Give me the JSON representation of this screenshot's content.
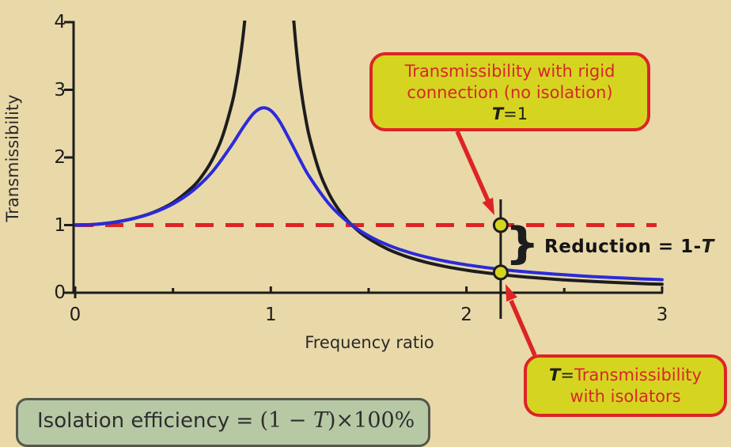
{
  "colors": {
    "background": "#e9d9a9",
    "curve_rigid": "#1d1d1d",
    "curve_isolated": "#2b2bd9",
    "reference_line": "#dd2424",
    "callout_fill": "#d5d521",
    "callout_border": "#dd2424",
    "callout_text": "#d8262a",
    "dot_fill": "#d5d521",
    "efficiency_fill": "#b7c8a5",
    "axis": "#1d1d1d"
  },
  "chart_data": {
    "type": "line",
    "xlabel": "Frequency ratio",
    "ylabel": "Transmissibility",
    "xlim": [
      0,
      3
    ],
    "ylim": [
      0,
      4
    ],
    "x_ticks": [
      0,
      1,
      2,
      3
    ],
    "x_minor_ticks": [
      0.5,
      1.5,
      2.5
    ],
    "y_ticks": [
      0,
      1,
      2,
      3,
      4
    ],
    "grid": false,
    "legend": "none (labeled via callouts)",
    "series": [
      {
        "name": "transmissibility-rigid-connection-undamped",
        "color": "#1d1d1d",
        "segments": [
          [
            [
              0,
              1
            ],
            [
              0.1,
              1.01
            ],
            [
              0.2,
              1.042
            ],
            [
              0.3,
              1.099
            ],
            [
              0.4,
              1.19
            ],
            [
              0.5,
              1.333
            ],
            [
              0.6,
              1.563
            ],
            [
              0.65,
              1.732
            ],
            [
              0.7,
              1.961
            ],
            [
              0.75,
              2.286
            ],
            [
              0.8,
              2.778
            ],
            [
              0.82,
              3.052
            ],
            [
              0.84,
              3.397
            ],
            [
              0.86,
              3.84
            ],
            [
              0.88,
              4.433
            ],
            [
              0.9,
              5.263
            ],
            [
              0.93,
              7.402
            ]
          ],
          [
            [
              1.05,
              9.756
            ],
            [
              1.07,
              6.901
            ],
            [
              1.1,
              4.762
            ],
            [
              1.12,
              3.931
            ],
            [
              1.14,
              3.338
            ],
            [
              1.16,
              2.894
            ],
            [
              1.18,
              2.548
            ],
            [
              1.2,
              2.273
            ],
            [
              1.25,
              1.778
            ],
            [
              1.3,
              1.449
            ],
            [
              1.35,
              1.216
            ],
            [
              1.4,
              1.042
            ],
            [
              1.45,
              0.907
            ],
            [
              1.5,
              0.8
            ],
            [
              1.6,
              0.641
            ],
            [
              1.7,
              0.529
            ],
            [
              1.8,
              0.446
            ],
            [
              1.9,
              0.383
            ],
            [
              2,
              0.333
            ],
            [
              2.1,
              0.293
            ],
            [
              2.2,
              0.26
            ],
            [
              2.3,
              0.233
            ],
            [
              2.4,
              0.21
            ],
            [
              2.5,
              0.19
            ],
            [
              2.6,
              0.174
            ],
            [
              2.7,
              0.159
            ],
            [
              2.8,
              0.146
            ],
            [
              2.9,
              0.135
            ],
            [
              3,
              0.125
            ]
          ]
        ]
      },
      {
        "name": "transmissibility-with-isolators-damped",
        "color": "#2b2bd9",
        "segments": [
          [
            [
              0,
              1
            ],
            [
              0.1,
              1.01
            ],
            [
              0.2,
              1.041
            ],
            [
              0.3,
              1.097
            ],
            [
              0.4,
              1.184
            ],
            [
              0.5,
              1.314
            ],
            [
              0.6,
              1.505
            ],
            [
              0.7,
              1.785
            ],
            [
              0.8,
              2.18
            ],
            [
              0.85,
              2.407
            ],
            [
              0.9,
              2.611
            ],
            [
              0.925,
              2.685
            ],
            [
              0.95,
              2.727
            ],
            [
              0.975,
              2.73
            ],
            [
              1,
              2.693
            ],
            [
              1.025,
              2.616
            ],
            [
              1.05,
              2.509
            ],
            [
              1.1,
              2.241
            ],
            [
              1.15,
              1.959
            ],
            [
              1.2,
              1.703
            ],
            [
              1.3,
              1.305
            ],
            [
              1.4,
              1.031
            ],
            [
              1.5,
              0.841
            ],
            [
              1.6,
              0.704
            ],
            [
              1.7,
              0.602
            ],
            [
              1.8,
              0.524
            ],
            [
              1.9,
              0.462
            ],
            [
              2,
              0.413
            ],
            [
              2.1,
              0.372
            ],
            [
              2.2,
              0.338
            ],
            [
              2.3,
              0.31
            ],
            [
              2.4,
              0.286
            ],
            [
              2.5,
              0.265
            ],
            [
              2.6,
              0.246
            ],
            [
              2.7,
              0.231
            ],
            [
              2.8,
              0.217
            ],
            [
              2.9,
              0.204
            ],
            [
              3,
              0.193
            ]
          ]
        ]
      }
    ],
    "reference_line": {
      "value": 1,
      "style": "dashed",
      "color": "#dd2424"
    },
    "marker": {
      "x": 2.175,
      "upper_T": 1.0,
      "lower_T": 0.3
    }
  },
  "labels": {
    "x_axis": "Frequency ratio",
    "y_axis": "Transmissibility"
  },
  "callout_rigid": {
    "line1": "Transmissibility with rigid",
    "line2": "connection (no isolation)",
    "t": "T",
    "t_rest": "=1"
  },
  "callout_isolators": {
    "t": "T",
    "eq": "=",
    "line1_rest": "Transmissibility",
    "line2": "with isolators"
  },
  "reduction": {
    "brace": "}",
    "prefix": "Reduction = 1-",
    "t": "T"
  },
  "efficiency_box": {
    "label": "Isolation efficiency = ",
    "open": "(1 − ",
    "t": "T",
    "close": ")×100%"
  }
}
